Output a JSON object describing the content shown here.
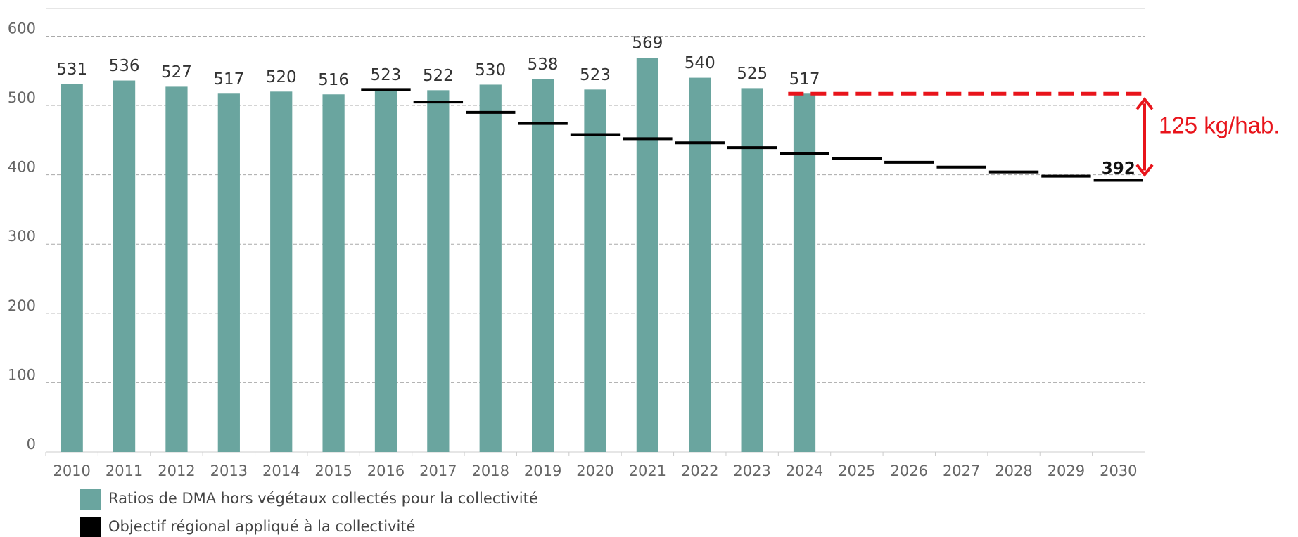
{
  "chart_data": {
    "type": "bar",
    "categories": [
      "2010",
      "2011",
      "2012",
      "2013",
      "2014",
      "2015",
      "2016",
      "2017",
      "2018",
      "2019",
      "2020",
      "2021",
      "2022",
      "2023",
      "2024",
      "2025",
      "2026",
      "2027",
      "2028",
      "2029",
      "2030"
    ],
    "series": [
      {
        "name": "Ratios de DMA hors végétaux collectés pour la collectivité",
        "color": "#6aa59f",
        "values": [
          531,
          536,
          527,
          517,
          520,
          516,
          523,
          522,
          530,
          538,
          523,
          569,
          540,
          525,
          517,
          null,
          null,
          null,
          null,
          null,
          null
        ]
      },
      {
        "name": "Objectif régional appliqué à la collectivité",
        "color": "#000000",
        "values": [
          null,
          null,
          null,
          null,
          null,
          null,
          523,
          505,
          490,
          474,
          458,
          452,
          446,
          439,
          431,
          424,
          418,
          411,
          404,
          398,
          392
        ],
        "value_labels": [
          null,
          null,
          null,
          null,
          null,
          null,
          null,
          null,
          null,
          null,
          null,
          null,
          null,
          null,
          null,
          null,
          null,
          null,
          null,
          null,
          "392"
        ]
      }
    ],
    "reference_line": {
      "value": 517,
      "color": "#e8141b"
    },
    "annotation": "125 kg/hab.",
    "ylim": [
      0,
      640
    ],
    "yticks": [
      0,
      100,
      200,
      300,
      400,
      500,
      600
    ],
    "grid": true
  }
}
